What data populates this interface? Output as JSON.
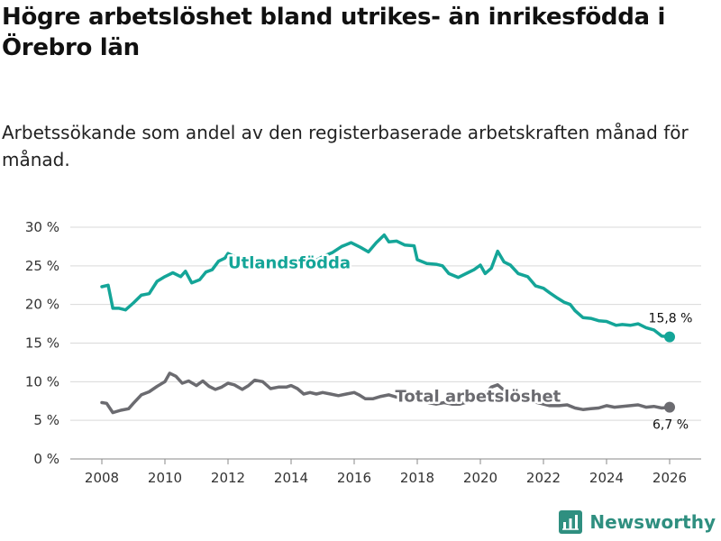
{
  "title": "Högre arbetslöshet bland utrikes- än inrikesfödda i Örebro län",
  "subtitle": "Arbetssökande som andel av den registerbaserade arbetskraften månad för månad.",
  "brand": {
    "name": "Newsworthy",
    "icon": "bar-chart-logo-icon",
    "color": "#2f8f80"
  },
  "chart_data": {
    "type": "line",
    "title": "Högre arbetslöshet bland utrikes- än inrikesfödda i Örebro län",
    "xlabel": "",
    "ylabel": "",
    "xlim": [
      2007,
      2027
    ],
    "ylim": [
      0,
      30
    ],
    "x_ticks": [
      2008,
      2010,
      2012,
      2014,
      2016,
      2018,
      2020,
      2022,
      2024,
      2026
    ],
    "x_tick_labels": [
      "2008",
      "2010",
      "2012",
      "2014",
      "2016",
      "2018",
      "2020",
      "2022",
      "2024",
      "2026"
    ],
    "y_ticks": [
      0,
      5,
      10,
      15,
      20,
      25,
      30
    ],
    "y_tick_labels": [
      "0 %",
      "5 %",
      "10 %",
      "15 %",
      "20 %",
      "25 %",
      "30 %"
    ],
    "grid": true,
    "series": [
      {
        "name": "Utlandsfödda",
        "color": "#14a598",
        "end_label": "15,8 %",
        "points": [
          [
            2008.0,
            22.3
          ],
          [
            2008.2,
            22.5
          ],
          [
            2008.35,
            19.5
          ],
          [
            2008.55,
            19.5
          ],
          [
            2008.75,
            19.3
          ],
          [
            2009.0,
            20.2
          ],
          [
            2009.25,
            21.2
          ],
          [
            2009.5,
            21.4
          ],
          [
            2009.75,
            23.0
          ],
          [
            2010.0,
            23.6
          ],
          [
            2010.25,
            24.1
          ],
          [
            2010.5,
            23.6
          ],
          [
            2010.65,
            24.3
          ],
          [
            2010.85,
            22.8
          ],
          [
            2011.1,
            23.2
          ],
          [
            2011.3,
            24.2
          ],
          [
            2011.5,
            24.5
          ],
          [
            2011.7,
            25.6
          ],
          [
            2011.9,
            26.0
          ],
          [
            2012.0,
            26.6
          ],
          [
            2012.3,
            26.0
          ],
          [
            2012.6,
            25.4
          ],
          [
            2013.0,
            25.6
          ],
          [
            2013.4,
            25.2
          ],
          [
            2013.8,
            25.4
          ],
          [
            2014.2,
            25.3
          ],
          [
            2014.45,
            25.0
          ],
          [
            2014.7,
            25.5
          ],
          [
            2015.0,
            26.2
          ],
          [
            2015.3,
            26.7
          ],
          [
            2015.6,
            27.5
          ],
          [
            2015.9,
            28.0
          ],
          [
            2016.2,
            27.4
          ],
          [
            2016.45,
            26.8
          ],
          [
            2016.7,
            28.0
          ],
          [
            2016.95,
            29.0
          ],
          [
            2017.1,
            28.1
          ],
          [
            2017.35,
            28.2
          ],
          [
            2017.6,
            27.7
          ],
          [
            2017.9,
            27.6
          ],
          [
            2018.0,
            25.8
          ],
          [
            2018.3,
            25.3
          ],
          [
            2018.6,
            25.2
          ],
          [
            2018.8,
            25.0
          ],
          [
            2019.0,
            24.0
          ],
          [
            2019.3,
            23.5
          ],
          [
            2019.6,
            24.1
          ],
          [
            2019.8,
            24.5
          ],
          [
            2020.0,
            25.1
          ],
          [
            2020.15,
            24.0
          ],
          [
            2020.35,
            24.7
          ],
          [
            2020.55,
            26.9
          ],
          [
            2020.75,
            25.5
          ],
          [
            2020.95,
            25.1
          ],
          [
            2021.2,
            24.0
          ],
          [
            2021.5,
            23.6
          ],
          [
            2021.75,
            22.4
          ],
          [
            2022.0,
            22.1
          ],
          [
            2022.2,
            21.5
          ],
          [
            2022.45,
            20.8
          ],
          [
            2022.65,
            20.3
          ],
          [
            2022.85,
            20.0
          ],
          [
            2023.0,
            19.2
          ],
          [
            2023.25,
            18.3
          ],
          [
            2023.5,
            18.2
          ],
          [
            2023.75,
            17.9
          ],
          [
            2024.0,
            17.8
          ],
          [
            2024.3,
            17.3
          ],
          [
            2024.5,
            17.4
          ],
          [
            2024.75,
            17.3
          ],
          [
            2025.0,
            17.5
          ],
          [
            2025.25,
            17.0
          ],
          [
            2025.5,
            16.7
          ],
          [
            2025.75,
            15.9
          ],
          [
            2026.0,
            15.8
          ]
        ]
      },
      {
        "name": "Total arbetslöshet",
        "color": "#6b6b70",
        "end_label": "6,7 %",
        "points": [
          [
            2008.0,
            7.3
          ],
          [
            2008.15,
            7.2
          ],
          [
            2008.35,
            6.0
          ],
          [
            2008.6,
            6.3
          ],
          [
            2008.85,
            6.5
          ],
          [
            2009.0,
            7.2
          ],
          [
            2009.25,
            8.3
          ],
          [
            2009.5,
            8.7
          ],
          [
            2009.75,
            9.4
          ],
          [
            2010.0,
            10.0
          ],
          [
            2010.15,
            11.1
          ],
          [
            2010.35,
            10.7
          ],
          [
            2010.55,
            9.8
          ],
          [
            2010.75,
            10.1
          ],
          [
            2011.0,
            9.5
          ],
          [
            2011.2,
            10.1
          ],
          [
            2011.4,
            9.4
          ],
          [
            2011.6,
            9.0
          ],
          [
            2011.8,
            9.3
          ],
          [
            2012.0,
            9.8
          ],
          [
            2012.2,
            9.6
          ],
          [
            2012.45,
            9.0
          ],
          [
            2012.65,
            9.5
          ],
          [
            2012.85,
            10.2
          ],
          [
            2013.1,
            10.0
          ],
          [
            2013.35,
            9.1
          ],
          [
            2013.6,
            9.3
          ],
          [
            2013.85,
            9.3
          ],
          [
            2014.0,
            9.5
          ],
          [
            2014.2,
            9.1
          ],
          [
            2014.4,
            8.4
          ],
          [
            2014.6,
            8.6
          ],
          [
            2014.8,
            8.4
          ],
          [
            2015.0,
            8.6
          ],
          [
            2015.25,
            8.4
          ],
          [
            2015.5,
            8.2
          ],
          [
            2015.75,
            8.4
          ],
          [
            2016.0,
            8.6
          ],
          [
            2016.15,
            8.3
          ],
          [
            2016.35,
            7.8
          ],
          [
            2016.6,
            7.8
          ],
          [
            2016.85,
            8.1
          ],
          [
            2017.1,
            8.3
          ],
          [
            2017.35,
            8.0
          ],
          [
            2017.6,
            7.9
          ],
          [
            2017.85,
            7.6
          ],
          [
            2018.1,
            7.6
          ],
          [
            2018.35,
            7.3
          ],
          [
            2018.6,
            7.1
          ],
          [
            2018.85,
            7.3
          ],
          [
            2019.1,
            7.1
          ],
          [
            2019.35,
            7.1
          ],
          [
            2019.6,
            7.4
          ],
          [
            2019.85,
            7.6
          ],
          [
            2020.0,
            8.0
          ],
          [
            2020.15,
            8.5
          ],
          [
            2020.35,
            9.3
          ],
          [
            2020.55,
            9.6
          ],
          [
            2020.75,
            8.9
          ],
          [
            2021.0,
            8.3
          ],
          [
            2021.3,
            7.8
          ],
          [
            2021.6,
            7.5
          ],
          [
            2021.9,
            7.2
          ],
          [
            2022.2,
            6.9
          ],
          [
            2022.5,
            6.9
          ],
          [
            2022.75,
            7.0
          ],
          [
            2023.0,
            6.6
          ],
          [
            2023.25,
            6.4
          ],
          [
            2023.5,
            6.5
          ],
          [
            2023.75,
            6.6
          ],
          [
            2024.0,
            6.9
          ],
          [
            2024.25,
            6.7
          ],
          [
            2024.5,
            6.8
          ],
          [
            2024.75,
            6.9
          ],
          [
            2025.0,
            7.0
          ],
          [
            2025.25,
            6.7
          ],
          [
            2025.5,
            6.8
          ],
          [
            2025.75,
            6.6
          ],
          [
            2026.0,
            6.7
          ]
        ]
      }
    ]
  }
}
